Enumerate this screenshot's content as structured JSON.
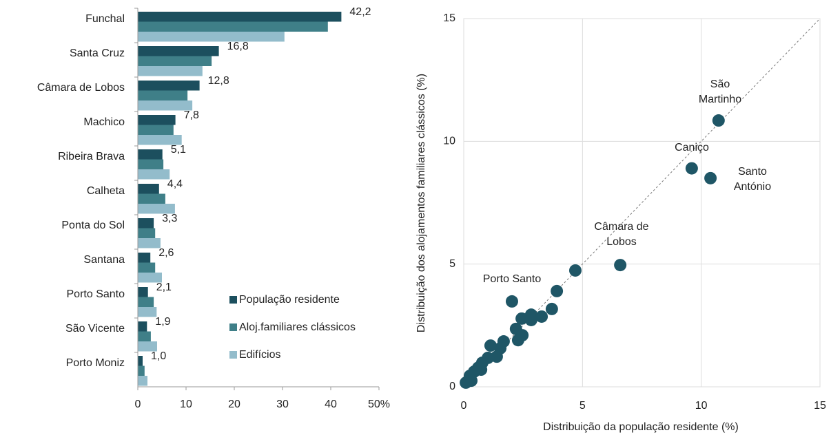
{
  "chart_data": [
    {
      "type": "bar",
      "orientation": "horizontal",
      "categories": [
        "Funchal",
        "Santa Cruz",
        "Câmara de Lobos",
        "Machico",
        "Ribeira Brava",
        "Calheta",
        "Ponta do Sol",
        "Santana",
        "Porto Santo",
        "São Vicente",
        "Porto Moniz"
      ],
      "series": [
        {
          "name": "População residente",
          "color": "#1c4f5e",
          "values": [
            42.2,
            16.8,
            12.8,
            7.8,
            5.1,
            4.4,
            3.3,
            2.6,
            2.1,
            1.9,
            1.0
          ],
          "value_labels": [
            "42,2",
            "16,8",
            "12,8",
            "7,8",
            "5,1",
            "4,4",
            "3,3",
            "2,6",
            "2,1",
            "1,9",
            "1,0"
          ]
        },
        {
          "name": "Aloj.familiares clássicos",
          "color": "#3f7f88",
          "values": [
            39.4,
            15.3,
            10.3,
            7.4,
            5.3,
            5.7,
            3.6,
            3.6,
            3.3,
            2.7,
            1.4
          ]
        },
        {
          "name": "Edifícios",
          "color": "#93bccb",
          "values": [
            30.4,
            13.4,
            11.3,
            9.1,
            6.6,
            7.7,
            4.7,
            5.0,
            3.9,
            4.0,
            2.0
          ]
        }
      ],
      "xlim": [
        0,
        50
      ],
      "xticks": [
        0,
        10,
        20,
        30,
        40,
        {
          "value": 50,
          "label": "50%"
        }
      ],
      "legend": "lower right"
    },
    {
      "type": "scatter",
      "xlabel": "Distribuição da população residente (%)",
      "ylabel": "Distribuição dos alojamentos familiares clássicos (%)",
      "color": "#1f5666",
      "x": [
        10.73,
        9.6,
        10.39,
        6.59,
        4.7,
        2.03,
        3.92,
        3.71,
        2.84,
        3.28,
        2.44,
        2.84,
        2.2,
        2.47,
        2.29,
        1.68,
        1.54,
        1.13,
        1.39,
        1.02,
        0.78,
        0.61,
        0.44,
        0.26,
        0.09,
        0.32,
        0.73
      ],
      "y": [
        10.85,
        8.9,
        8.5,
        4.96,
        4.74,
        3.48,
        3.9,
        3.17,
        2.94,
        2.86,
        2.78,
        2.72,
        2.36,
        2.1,
        1.9,
        1.85,
        1.57,
        1.68,
        1.23,
        1.18,
        0.98,
        0.78,
        0.62,
        0.45,
        0.17,
        0.25,
        0.7
      ],
      "annotations": [
        {
          "text": [
            "São",
            "Martinho"
          ]
        },
        {
          "text": [
            "Caniço"
          ]
        },
        {
          "text": [
            "Santo",
            "António"
          ]
        },
        {
          "text": [
            "Câmara de",
            "Lobos"
          ]
        },
        {
          "text": [
            "Porto Santo"
          ]
        }
      ],
      "xlim": [
        0,
        15
      ],
      "ylim": [
        0,
        15
      ],
      "xticks": [
        0,
        5,
        10,
        15
      ],
      "yticks": [
        0,
        5,
        10,
        15
      ],
      "grid": true
    }
  ]
}
